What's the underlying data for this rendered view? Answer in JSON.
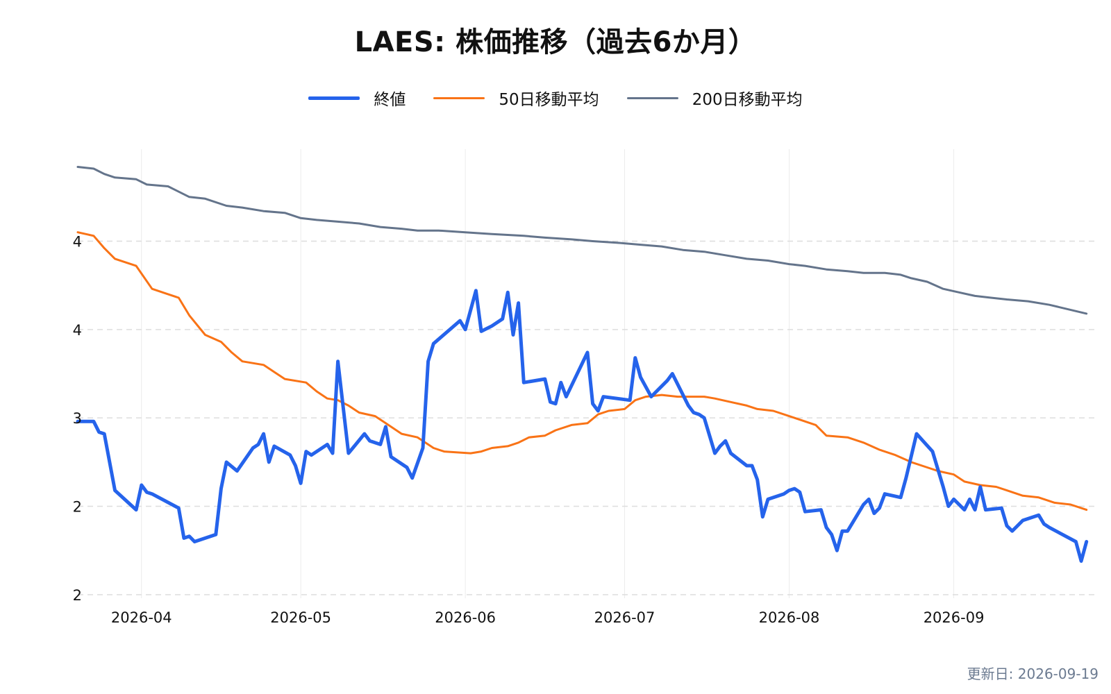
{
  "chart_data": {
    "type": "line",
    "title": "LAES: 株価推移（過去6か月）",
    "xlabel": "",
    "ylabel": "",
    "x_range": [
      "2026-03-20",
      "2026-09-28"
    ],
    "ylim": [
      1.98,
      4.52
    ],
    "y_ticks": [
      {
        "value": 2.0,
        "label": "2"
      },
      {
        "value": 2.5,
        "label": "2"
      },
      {
        "value": 3.0,
        "label": "3"
      },
      {
        "value": 3.5,
        "label": "4"
      },
      {
        "value": 4.0,
        "label": "4"
      }
    ],
    "x_ticks": [
      "2026-04-01",
      "2026-05-01",
      "2026-06-01",
      "2026-07-01",
      "2026-08-01",
      "2026-09-01"
    ],
    "x_tick_labels": [
      "2026-04",
      "2026-05",
      "2026-06",
      "2026-07",
      "2026-08",
      "2026-09"
    ],
    "grid": {
      "x": true,
      "y": true,
      "y_style": "dashed"
    },
    "legend_position": "top-center",
    "series": [
      {
        "name": "終値",
        "color": "#2563eb",
        "width": 5,
        "points": [
          [
            "2026-03-20",
            2.98
          ],
          [
            "2026-03-23",
            2.98
          ],
          [
            "2026-03-24",
            2.92
          ],
          [
            "2026-03-25",
            2.91
          ],
          [
            "2026-03-27",
            2.59
          ],
          [
            "2026-03-31",
            2.48
          ],
          [
            "2026-04-01",
            2.62
          ],
          [
            "2026-04-02",
            2.58
          ],
          [
            "2026-04-03",
            2.57
          ],
          [
            "2026-04-08",
            2.49
          ],
          [
            "2026-04-09",
            2.32
          ],
          [
            "2026-04-10",
            2.33
          ],
          [
            "2026-04-11",
            2.3
          ],
          [
            "2026-04-15",
            2.34
          ],
          [
            "2026-04-16",
            2.6
          ],
          [
            "2026-04-17",
            2.75
          ],
          [
            "2026-04-19",
            2.7
          ],
          [
            "2026-04-22",
            2.83
          ],
          [
            "2026-04-23",
            2.85
          ],
          [
            "2026-04-24",
            2.91
          ],
          [
            "2026-04-25",
            2.75
          ],
          [
            "2026-04-26",
            2.84
          ],
          [
            "2026-04-29",
            2.79
          ],
          [
            "2026-04-30",
            2.73
          ],
          [
            "2026-05-01",
            2.63
          ],
          [
            "2026-05-02",
            2.81
          ],
          [
            "2026-05-03",
            2.79
          ],
          [
            "2026-05-06",
            2.85
          ],
          [
            "2026-05-07",
            2.8
          ],
          [
            "2026-05-08",
            3.32
          ],
          [
            "2026-05-10",
            2.8
          ],
          [
            "2026-05-13",
            2.91
          ],
          [
            "2026-05-14",
            2.87
          ],
          [
            "2026-05-16",
            2.85
          ],
          [
            "2026-05-17",
            2.95
          ],
          [
            "2026-05-18",
            2.78
          ],
          [
            "2026-05-21",
            2.72
          ],
          [
            "2026-05-22",
            2.66
          ],
          [
            "2026-05-24",
            2.83
          ],
          [
            "2026-05-25",
            3.32
          ],
          [
            "2026-05-26",
            3.42
          ],
          [
            "2026-05-31",
            3.55
          ],
          [
            "2026-06-01",
            3.5
          ],
          [
            "2026-06-03",
            3.72
          ],
          [
            "2026-06-04",
            3.49
          ],
          [
            "2026-06-06",
            3.52
          ],
          [
            "2026-06-08",
            3.56
          ],
          [
            "2026-06-09",
            3.71
          ],
          [
            "2026-06-10",
            3.47
          ],
          [
            "2026-06-11",
            3.65
          ],
          [
            "2026-06-12",
            3.2
          ],
          [
            "2026-06-16",
            3.22
          ],
          [
            "2026-06-17",
            3.09
          ],
          [
            "2026-06-18",
            3.08
          ],
          [
            "2026-06-19",
            3.2
          ],
          [
            "2026-06-20",
            3.12
          ],
          [
            "2026-06-24",
            3.37
          ],
          [
            "2026-06-25",
            3.08
          ],
          [
            "2026-06-26",
            3.04
          ],
          [
            "2026-06-27",
            3.12
          ],
          [
            "2026-07-02",
            3.1
          ],
          [
            "2026-07-03",
            3.34
          ],
          [
            "2026-07-04",
            3.23
          ],
          [
            "2026-07-06",
            3.12
          ],
          [
            "2026-07-09",
            3.21
          ],
          [
            "2026-07-10",
            3.25
          ],
          [
            "2026-07-13",
            3.07
          ],
          [
            "2026-07-14",
            3.03
          ],
          [
            "2026-07-15",
            3.02
          ],
          [
            "2026-07-16",
            3.0
          ],
          [
            "2026-07-18",
            2.8
          ],
          [
            "2026-07-19",
            2.84
          ],
          [
            "2026-07-20",
            2.87
          ],
          [
            "2026-07-21",
            2.8
          ],
          [
            "2026-07-24",
            2.73
          ],
          [
            "2026-07-25",
            2.73
          ],
          [
            "2026-07-26",
            2.65
          ],
          [
            "2026-07-27",
            2.44
          ],
          [
            "2026-07-28",
            2.54
          ],
          [
            "2026-07-31",
            2.57
          ],
          [
            "2026-08-01",
            2.59
          ],
          [
            "2026-08-02",
            2.6
          ],
          [
            "2026-08-03",
            2.58
          ],
          [
            "2026-08-04",
            2.47
          ],
          [
            "2026-08-07",
            2.48
          ],
          [
            "2026-08-08",
            2.38
          ],
          [
            "2026-08-09",
            2.34
          ],
          [
            "2026-08-10",
            2.25
          ],
          [
            "2026-08-11",
            2.36
          ],
          [
            "2026-08-12",
            2.36
          ],
          [
            "2026-08-15",
            2.51
          ],
          [
            "2026-08-16",
            2.54
          ],
          [
            "2026-08-17",
            2.46
          ],
          [
            "2026-08-18",
            2.49
          ],
          [
            "2026-08-19",
            2.57
          ],
          [
            "2026-08-22",
            2.55
          ],
          [
            "2026-08-23",
            2.66
          ],
          [
            "2026-08-25",
            2.91
          ],
          [
            "2026-08-28",
            2.81
          ],
          [
            "2026-08-30",
            2.61
          ],
          [
            "2026-08-31",
            2.5
          ],
          [
            "2026-09-01",
            2.54
          ],
          [
            "2026-09-03",
            2.48
          ],
          [
            "2026-09-04",
            2.54
          ],
          [
            "2026-09-05",
            2.48
          ],
          [
            "2026-09-06",
            2.61
          ],
          [
            "2026-09-07",
            2.48
          ],
          [
            "2026-09-10",
            2.49
          ],
          [
            "2026-09-11",
            2.39
          ],
          [
            "2026-09-12",
            2.36
          ],
          [
            "2026-09-13",
            2.39
          ],
          [
            "2026-09-14",
            2.42
          ],
          [
            "2026-09-17",
            2.45
          ],
          [
            "2026-09-18",
            2.4
          ],
          [
            "2026-09-19",
            2.38
          ],
          [
            "2026-09-24",
            2.3
          ],
          [
            "2026-09-25",
            2.19
          ],
          [
            "2026-09-26",
            2.3
          ]
        ]
      },
      {
        "name": "50日移動平均",
        "color": "#f97316",
        "width": 3,
        "points": [
          [
            "2026-03-20",
            4.05
          ],
          [
            "2026-03-23",
            4.03
          ],
          [
            "2026-03-25",
            3.96
          ],
          [
            "2026-03-27",
            3.9
          ],
          [
            "2026-03-31",
            3.86
          ],
          [
            "2026-04-03",
            3.73
          ],
          [
            "2026-04-06",
            3.7
          ],
          [
            "2026-04-08",
            3.68
          ],
          [
            "2026-04-10",
            3.58
          ],
          [
            "2026-04-13",
            3.47
          ],
          [
            "2026-04-16",
            3.43
          ],
          [
            "2026-04-18",
            3.37
          ],
          [
            "2026-04-20",
            3.32
          ],
          [
            "2026-04-24",
            3.3
          ],
          [
            "2026-04-26",
            3.26
          ],
          [
            "2026-04-28",
            3.22
          ],
          [
            "2026-05-02",
            3.2
          ],
          [
            "2026-05-04",
            3.15
          ],
          [
            "2026-05-06",
            3.11
          ],
          [
            "2026-05-08",
            3.1
          ],
          [
            "2026-05-10",
            3.07
          ],
          [
            "2026-05-12",
            3.03
          ],
          [
            "2026-05-15",
            3.01
          ],
          [
            "2026-05-17",
            2.97
          ],
          [
            "2026-05-20",
            2.91
          ],
          [
            "2026-05-23",
            2.89
          ],
          [
            "2026-05-26",
            2.83
          ],
          [
            "2026-05-28",
            2.81
          ],
          [
            "2026-06-02",
            2.8
          ],
          [
            "2026-06-04",
            2.81
          ],
          [
            "2026-06-06",
            2.83
          ],
          [
            "2026-06-09",
            2.84
          ],
          [
            "2026-06-11",
            2.86
          ],
          [
            "2026-06-13",
            2.89
          ],
          [
            "2026-06-16",
            2.9
          ],
          [
            "2026-06-18",
            2.93
          ],
          [
            "2026-06-21",
            2.96
          ],
          [
            "2026-06-24",
            2.97
          ],
          [
            "2026-06-26",
            3.02
          ],
          [
            "2026-06-28",
            3.04
          ],
          [
            "2026-07-01",
            3.05
          ],
          [
            "2026-07-03",
            3.1
          ],
          [
            "2026-07-05",
            3.12
          ],
          [
            "2026-07-08",
            3.13
          ],
          [
            "2026-07-11",
            3.12
          ],
          [
            "2026-07-13",
            3.12
          ],
          [
            "2026-07-16",
            3.12
          ],
          [
            "2026-07-18",
            3.11
          ],
          [
            "2026-07-21",
            3.09
          ],
          [
            "2026-07-24",
            3.07
          ],
          [
            "2026-07-26",
            3.05
          ],
          [
            "2026-07-29",
            3.04
          ],
          [
            "2026-08-01",
            3.01
          ],
          [
            "2026-08-03",
            2.99
          ],
          [
            "2026-08-06",
            2.96
          ],
          [
            "2026-08-08",
            2.9
          ],
          [
            "2026-08-12",
            2.89
          ],
          [
            "2026-08-15",
            2.86
          ],
          [
            "2026-08-18",
            2.82
          ],
          [
            "2026-08-21",
            2.79
          ],
          [
            "2026-08-24",
            2.75
          ],
          [
            "2026-08-27",
            2.72
          ],
          [
            "2026-08-29",
            2.7
          ],
          [
            "2026-09-01",
            2.68
          ],
          [
            "2026-09-03",
            2.64
          ],
          [
            "2026-09-06",
            2.62
          ],
          [
            "2026-09-09",
            2.61
          ],
          [
            "2026-09-11",
            2.59
          ],
          [
            "2026-09-14",
            2.56
          ],
          [
            "2026-09-17",
            2.55
          ],
          [
            "2026-09-20",
            2.52
          ],
          [
            "2026-09-23",
            2.51
          ],
          [
            "2026-09-26",
            2.48
          ]
        ]
      },
      {
        "name": "200日移動平均",
        "color": "#64748b",
        "width": 3,
        "points": [
          [
            "2026-03-20",
            4.42
          ],
          [
            "2026-03-23",
            4.41
          ],
          [
            "2026-03-25",
            4.38
          ],
          [
            "2026-03-27",
            4.36
          ],
          [
            "2026-03-31",
            4.35
          ],
          [
            "2026-04-02",
            4.32
          ],
          [
            "2026-04-06",
            4.31
          ],
          [
            "2026-04-10",
            4.25
          ],
          [
            "2026-04-13",
            4.24
          ],
          [
            "2026-04-17",
            4.2
          ],
          [
            "2026-04-20",
            4.19
          ],
          [
            "2026-04-24",
            4.17
          ],
          [
            "2026-04-28",
            4.16
          ],
          [
            "2026-05-01",
            4.13
          ],
          [
            "2026-05-04",
            4.12
          ],
          [
            "2026-05-08",
            4.11
          ],
          [
            "2026-05-12",
            4.1
          ],
          [
            "2026-05-16",
            4.08
          ],
          [
            "2026-05-20",
            4.07
          ],
          [
            "2026-05-23",
            4.06
          ],
          [
            "2026-05-27",
            4.06
          ],
          [
            "2026-06-01",
            4.05
          ],
          [
            "2026-06-06",
            4.04
          ],
          [
            "2026-06-12",
            4.03
          ],
          [
            "2026-06-16",
            4.02
          ],
          [
            "2026-06-21",
            4.01
          ],
          [
            "2026-06-25",
            4.0
          ],
          [
            "2026-06-30",
            3.99
          ],
          [
            "2026-07-04",
            3.98
          ],
          [
            "2026-07-08",
            3.97
          ],
          [
            "2026-07-12",
            3.95
          ],
          [
            "2026-07-16",
            3.94
          ],
          [
            "2026-07-20",
            3.92
          ],
          [
            "2026-07-24",
            3.9
          ],
          [
            "2026-07-28",
            3.89
          ],
          [
            "2026-08-01",
            3.87
          ],
          [
            "2026-08-04",
            3.86
          ],
          [
            "2026-08-08",
            3.84
          ],
          [
            "2026-08-12",
            3.83
          ],
          [
            "2026-08-15",
            3.82
          ],
          [
            "2026-08-19",
            3.82
          ],
          [
            "2026-08-22",
            3.81
          ],
          [
            "2026-08-24",
            3.79
          ],
          [
            "2026-08-27",
            3.77
          ],
          [
            "2026-08-30",
            3.73
          ],
          [
            "2026-09-02",
            3.71
          ],
          [
            "2026-09-05",
            3.69
          ],
          [
            "2026-09-08",
            3.68
          ],
          [
            "2026-09-11",
            3.67
          ],
          [
            "2026-09-15",
            3.66
          ],
          [
            "2026-09-19",
            3.64
          ],
          [
            "2026-09-26",
            3.59
          ]
        ]
      }
    ]
  },
  "footer": {
    "updated_label": "更新日: 2026-09-19"
  }
}
